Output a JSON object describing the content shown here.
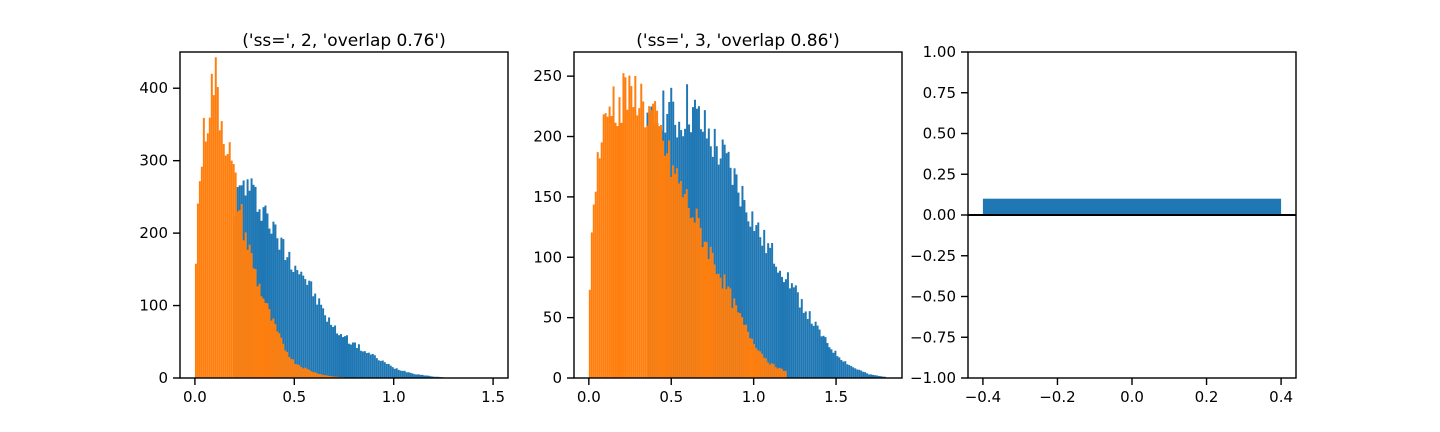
{
  "colors": {
    "series_a": "#1f77b4",
    "series_b": "#ff7f0e",
    "axes": "#000000"
  },
  "chart_data": [
    {
      "type": "bar",
      "subtype": "histogram",
      "title": "('ss=', 2, 'overlap 0.76')",
      "xlim": [
        -0.075,
        1.575
      ],
      "ylim": [
        0,
        450
      ],
      "xticks": [
        0.0,
        0.5,
        1.0,
        1.5
      ],
      "xtick_labels": [
        "0.0",
        "0.5",
        "1.0",
        "1.5"
      ],
      "yticks": [
        0,
        100,
        200,
        300,
        400
      ],
      "ytick_labels": [
        "0",
        "100",
        "200",
        "300",
        "400"
      ],
      "bin_width": 0.01,
      "series": [
        {
          "color": "series_a",
          "x": [
            0.2,
            0.25,
            0.3,
            0.35,
            0.4,
            0.45,
            0.5,
            0.55,
            0.6,
            0.65,
            0.7,
            0.75,
            0.8,
            0.85,
            0.9,
            0.95,
            1.0,
            1.05,
            1.1,
            1.15,
            1.2,
            1.25
          ],
          "y": [
            240,
            270,
            250,
            235,
            200,
            178,
            160,
            142,
            115,
            90,
            68,
            58,
            47,
            38,
            30,
            22,
            14,
            10,
            6,
            4,
            2,
            1
          ]
        },
        {
          "color": "series_b",
          "x": [
            0.0,
            0.02,
            0.04,
            0.06,
            0.08,
            0.1,
            0.12,
            0.14,
            0.16,
            0.18,
            0.2,
            0.22,
            0.24,
            0.26,
            0.28,
            0.3,
            0.32,
            0.34,
            0.36,
            0.38,
            0.4,
            0.42,
            0.44,
            0.46,
            0.48,
            0.5,
            0.55,
            0.6,
            0.65,
            0.7,
            0.75
          ],
          "y": [
            130,
            265,
            320,
            360,
            390,
            420,
            380,
            350,
            330,
            300,
            270,
            240,
            215,
            190,
            170,
            150,
            130,
            115,
            100,
            85,
            72,
            60,
            48,
            38,
            30,
            22,
            14,
            8,
            4,
            2,
            1
          ]
        }
      ]
    },
    {
      "type": "bar",
      "subtype": "histogram",
      "title": "('ss=', 3, 'overlap 0.86')",
      "xlim": [
        -0.09,
        1.9
      ],
      "ylim": [
        0,
        270
      ],
      "xticks": [
        0.0,
        0.5,
        1.0,
        1.5
      ],
      "xtick_labels": [
        "0.0",
        "0.5",
        "1.0",
        "1.5"
      ],
      "yticks": [
        0,
        50,
        100,
        150,
        200,
        250
      ],
      "ytick_labels": [
        "0",
        "50",
        "100",
        "150",
        "200",
        "250"
      ],
      "bin_width": 0.012,
      "series": [
        {
          "color": "series_a",
          "x": [
            0.35,
            0.4,
            0.45,
            0.5,
            0.55,
            0.6,
            0.65,
            0.7,
            0.75,
            0.8,
            0.85,
            0.9,
            0.95,
            1.0,
            1.05,
            1.1,
            1.15,
            1.2,
            1.25,
            1.3,
            1.35,
            1.4,
            1.45,
            1.5,
            1.55,
            1.6,
            1.65,
            1.7,
            1.75,
            1.8
          ],
          "y": [
            200,
            215,
            225,
            220,
            210,
            225,
            215,
            205,
            195,
            185,
            175,
            160,
            145,
            130,
            115,
            105,
            95,
            85,
            72,
            60,
            48,
            38,
            28,
            20,
            14,
            9,
            6,
            3,
            2,
            1
          ]
        },
        {
          "color": "series_b",
          "x": [
            0.0,
            0.02,
            0.04,
            0.06,
            0.08,
            0.1,
            0.12,
            0.14,
            0.16,
            0.18,
            0.2,
            0.22,
            0.24,
            0.26,
            0.28,
            0.3,
            0.32,
            0.34,
            0.36,
            0.38,
            0.4,
            0.45,
            0.5,
            0.55,
            0.6,
            0.65,
            0.7,
            0.75,
            0.8,
            0.85,
            0.9,
            0.95,
            1.0,
            1.05,
            1.1,
            1.2
          ],
          "y": [
            60,
            120,
            165,
            185,
            200,
            210,
            220,
            235,
            225,
            230,
            220,
            250,
            230,
            225,
            235,
            240,
            230,
            225,
            215,
            220,
            210,
            195,
            175,
            160,
            145,
            130,
            115,
            100,
            85,
            70,
            55,
            42,
            30,
            20,
            12,
            5
          ]
        }
      ]
    },
    {
      "type": "bar",
      "title": "",
      "xlim": [
        -0.44,
        0.44
      ],
      "ylim": [
        -1.0,
        1.0
      ],
      "xticks": [
        -0.4,
        -0.2,
        0.0,
        0.2,
        0.4
      ],
      "xtick_labels": [
        "−0.4",
        "−0.2",
        "0.0",
        "0.2",
        "0.4"
      ],
      "yticks": [
        -1.0,
        -0.75,
        -0.5,
        -0.25,
        0.0,
        0.25,
        0.5,
        0.75,
        1.0
      ],
      "ytick_labels": [
        "−1.00",
        "−0.75",
        "−0.50",
        "−0.25",
        "0.00",
        "0.25",
        "0.50",
        "0.75",
        "1.00"
      ],
      "bars": [
        {
          "x": 0.0,
          "width": 0.8,
          "value": 0.1,
          "color": "series_a"
        }
      ],
      "hline": 0.0
    }
  ]
}
